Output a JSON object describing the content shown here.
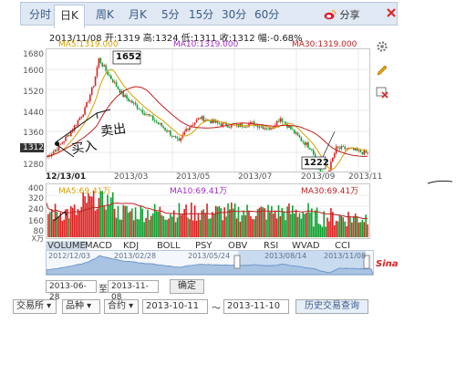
{
  "tabs": [
    {
      "label": "分时",
      "active": false
    },
    {
      "label": "日K",
      "active": true
    },
    {
      "label": "周K",
      "active": false
    },
    {
      "label": "月K",
      "active": false
    },
    {
      "label": "5分",
      "active": false
    },
    {
      "label": "15分",
      "active": false
    },
    {
      "label": "30分",
      "active": false
    },
    {
      "label": "60分",
      "active": false
    }
  ],
  "share_label": "分享",
  "info_line": "2013/11/08 开:1319 高:1324 低:1311 收:1312 幅:-0.68%",
  "ma_line": {
    "ma5": "MA5:1319.000",
    "ma10": "MA10:1319.000",
    "ma30": "MA30:1319.000"
  },
  "price_axis": [
    "1680",
    "1600",
    "1520",
    "1440",
    "1360",
    "1312",
    "1280"
  ],
  "date_axis": [
    "12/13/01",
    "2013/03",
    "2013/05",
    "2013/07",
    "2013/09",
    "2013/11"
  ],
  "annotations": {
    "high": "1652",
    "low": "1222",
    "current": "1312"
  },
  "handwriting": [
    "买入",
    "卖出"
  ],
  "vol_ma_line": {
    "ma5": "MA5:69.41万",
    "ma10": "MA10:69.41万",
    "ma30": "MA30:69.41万"
  },
  "vol_axis": [
    "400",
    "320",
    "240",
    "160",
    "80",
    "X万"
  ],
  "indicators": [
    {
      "label": "VOLUME",
      "active": true
    },
    {
      "label": "MACD",
      "active": false
    },
    {
      "label": "KDJ",
      "active": false
    },
    {
      "label": "BOLL",
      "active": false
    },
    {
      "label": "PSY",
      "active": false
    },
    {
      "label": "OBV",
      "active": false
    },
    {
      "label": "RSI",
      "active": false
    },
    {
      "label": "WVAD",
      "active": false
    },
    {
      "label": "CCI",
      "active": false
    }
  ],
  "navigator_dates": [
    "2012/12/03",
    "2013/02/28",
    "2013/05/24",
    "2013/08/14",
    "2013/11/08"
  ],
  "navigator_brand": "Sina",
  "range": {
    "from": "2013-06-28",
    "to_label": "至",
    "to": "2013-11-08",
    "confirm": "确定"
  },
  "query": {
    "selects": [
      "交易所",
      "品种",
      "合约"
    ],
    "start": "2013-10-11",
    "sep": "～",
    "end": "2013-11-10",
    "button": "历史交易查询"
  },
  "colors": {
    "up": "#e02020",
    "down": "#10a030",
    "ma5": "#d8a000",
    "ma10": "#a030c0",
    "ma30": "#c02020",
    "tab_bg": "#dfe8f3"
  }
}
